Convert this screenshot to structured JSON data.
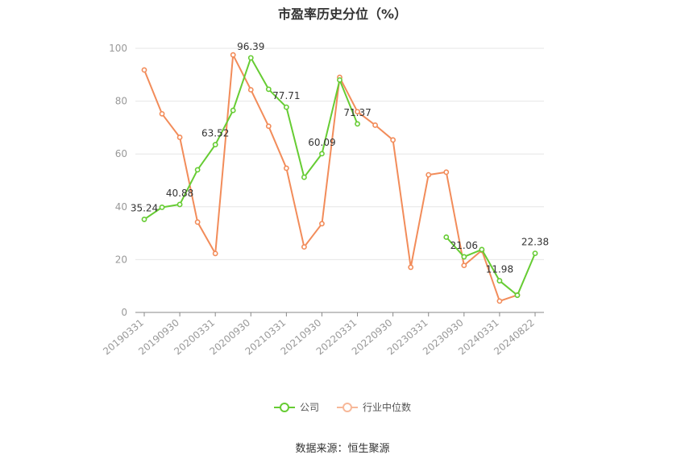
{
  "chart_data": {
    "type": "line",
    "title": "市盈率历史分位（%）",
    "x": [
      "20190331",
      "20190630",
      "20190930",
      "20191231",
      "20200331",
      "20200630",
      "20200930",
      "20201231",
      "20210331",
      "20210630",
      "20210930",
      "20211231",
      "20220331",
      "20220630",
      "20220930",
      "20221231",
      "20230331",
      "20230630",
      "20230930",
      "20231231",
      "20240331",
      "20240630",
      "20240822"
    ],
    "x_tick_labels": [
      "20190331",
      "20190930",
      "20200331",
      "20200930",
      "20210331",
      "20210930",
      "20220331",
      "20220930",
      "20230331",
      "20230930",
      "20240331",
      "20240822"
    ],
    "yticks": [
      0,
      20,
      40,
      60,
      80,
      100
    ],
    "ylim": [
      0,
      100
    ],
    "grid": true,
    "legend_position": "bottom",
    "series": [
      {
        "name": "公司",
        "color": "#66cc33",
        "values": [
          35.24,
          39.8,
          40.88,
          54.0,
          63.52,
          76.5,
          96.39,
          84.5,
          77.71,
          51.2,
          60.09,
          88.0,
          71.37,
          null,
          null,
          null,
          null,
          28.5,
          21.06,
          23.8,
          11.98,
          6.5,
          22.38
        ],
        "labels": [
          {
            "index": 0,
            "text": "35.24"
          },
          {
            "index": 2,
            "text": "40.88"
          },
          {
            "index": 4,
            "text": "63.52"
          },
          {
            "index": 6,
            "text": "96.39"
          },
          {
            "index": 8,
            "text": "77.71"
          },
          {
            "index": 10,
            "text": "60.09"
          },
          {
            "index": 12,
            "text": "71.37"
          },
          {
            "index": 18,
            "text": "21.06"
          },
          {
            "index": 20,
            "text": "11.98"
          },
          {
            "index": 22,
            "text": "22.38"
          }
        ]
      },
      {
        "name": "行业中位数",
        "color": "#f28c5a",
        "values": [
          91.8,
          75.2,
          66.3,
          34.2,
          22.3,
          97.5,
          84.3,
          70.5,
          54.6,
          24.8,
          33.6,
          89.0,
          76.0,
          70.9,
          65.3,
          17.1,
          52.1,
          53.1,
          17.8,
          23.5,
          4.3,
          6.6,
          null
        ],
        "labels": []
      }
    ]
  },
  "legend": {
    "company": "公司",
    "industry": "行业中位数"
  },
  "source": "数据来源：恒生聚源"
}
